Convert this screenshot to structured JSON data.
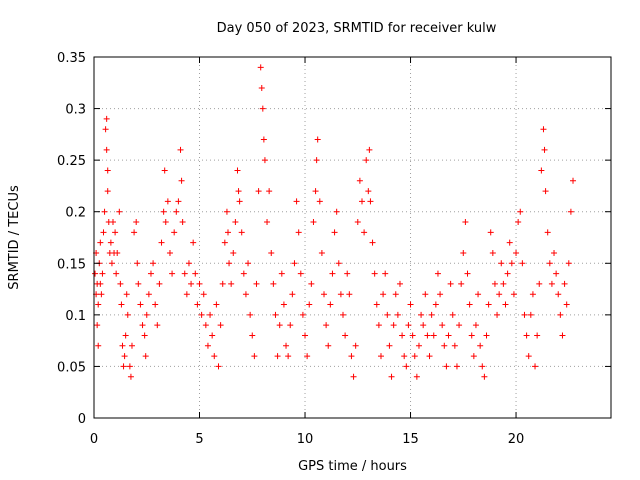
{
  "chart_data": {
    "type": "scatter",
    "title": "Day 050 of 2023, SRMTID for receiver kulw",
    "xlabel": "GPS time / hours",
    "ylabel": "SRMTID / TECUs",
    "xlim": [
      0,
      24.5
    ],
    "ylim": [
      0,
      0.35
    ],
    "xticks": [
      0,
      5,
      10,
      15,
      20
    ],
    "xtick_labels": [
      "0",
      "5",
      "10",
      "15",
      "20"
    ],
    "yticks": [
      0,
      0.05,
      0.1,
      0.15,
      0.2,
      0.25,
      0.3,
      0.35
    ],
    "ytick_labels": [
      "0",
      "0.05",
      "0.1",
      "0.15",
      "0.2",
      "0.25",
      "0.3",
      "0.35"
    ],
    "grid": true,
    "marker": "+",
    "color": "#ff0000",
    "series": [
      {
        "name": "SRMTID",
        "points": [
          [
            0.05,
            0.14
          ],
          [
            0.1,
            0.12
          ],
          [
            0.1,
            0.16
          ],
          [
            0.15,
            0.09
          ],
          [
            0.15,
            0.13
          ],
          [
            0.2,
            0.07
          ],
          [
            0.2,
            0.11
          ],
          [
            0.25,
            0.15
          ],
          [
            0.3,
            0.13
          ],
          [
            0.3,
            0.17
          ],
          [
            0.35,
            0.12
          ],
          [
            0.4,
            0.14
          ],
          [
            0.45,
            0.18
          ],
          [
            0.5,
            0.2
          ],
          [
            0.55,
            0.28
          ],
          [
            0.6,
            0.29
          ],
          [
            0.6,
            0.26
          ],
          [
            0.65,
            0.24
          ],
          [
            0.65,
            0.22
          ],
          [
            0.7,
            0.19
          ],
          [
            0.75,
            0.16
          ],
          [
            0.8,
            0.17
          ],
          [
            0.85,
            0.15
          ],
          [
            0.9,
            0.19
          ],
          [
            0.95,
            0.16
          ],
          [
            1.0,
            0.18
          ],
          [
            1.05,
            0.14
          ],
          [
            1.1,
            0.16
          ],
          [
            1.2,
            0.2
          ],
          [
            1.25,
            0.13
          ],
          [
            1.3,
            0.11
          ],
          [
            1.35,
            0.07
          ],
          [
            1.4,
            0.05
          ],
          [
            1.45,
            0.06
          ],
          [
            1.5,
            0.08
          ],
          [
            1.55,
            0.12
          ],
          [
            1.6,
            0.1
          ],
          [
            1.7,
            0.05
          ],
          [
            1.75,
            0.04
          ],
          [
            1.8,
            0.07
          ],
          [
            1.9,
            0.18
          ],
          [
            2.0,
            0.19
          ],
          [
            2.05,
            0.15
          ],
          [
            2.1,
            0.13
          ],
          [
            2.2,
            0.11
          ],
          [
            2.3,
            0.09
          ],
          [
            2.4,
            0.08
          ],
          [
            2.45,
            0.06
          ],
          [
            2.5,
            0.1
          ],
          [
            2.6,
            0.12
          ],
          [
            2.7,
            0.14
          ],
          [
            2.8,
            0.15
          ],
          [
            2.9,
            0.11
          ],
          [
            3.0,
            0.09
          ],
          [
            3.1,
            0.13
          ],
          [
            3.2,
            0.17
          ],
          [
            3.3,
            0.2
          ],
          [
            3.35,
            0.24
          ],
          [
            3.4,
            0.19
          ],
          [
            3.5,
            0.21
          ],
          [
            3.6,
            0.16
          ],
          [
            3.7,
            0.14
          ],
          [
            3.8,
            0.18
          ],
          [
            3.9,
            0.2
          ],
          [
            4.0,
            0.21
          ],
          [
            4.1,
            0.26
          ],
          [
            4.15,
            0.23
          ],
          [
            4.2,
            0.19
          ],
          [
            4.3,
            0.14
          ],
          [
            4.4,
            0.12
          ],
          [
            4.5,
            0.15
          ],
          [
            4.6,
            0.13
          ],
          [
            4.7,
            0.17
          ],
          [
            4.8,
            0.14
          ],
          [
            4.9,
            0.11
          ],
          [
            5.0,
            0.13
          ],
          [
            5.1,
            0.1
          ],
          [
            5.2,
            0.12
          ],
          [
            5.3,
            0.09
          ],
          [
            5.4,
            0.07
          ],
          [
            5.5,
            0.1
          ],
          [
            5.6,
            0.08
          ],
          [
            5.7,
            0.06
          ],
          [
            5.8,
            0.11
          ],
          [
            5.9,
            0.05
          ],
          [
            6.0,
            0.09
          ],
          [
            6.1,
            0.13
          ],
          [
            6.2,
            0.17
          ],
          [
            6.3,
            0.2
          ],
          [
            6.35,
            0.18
          ],
          [
            6.4,
            0.15
          ],
          [
            6.5,
            0.13
          ],
          [
            6.6,
            0.16
          ],
          [
            6.7,
            0.19
          ],
          [
            6.8,
            0.24
          ],
          [
            6.85,
            0.22
          ],
          [
            6.9,
            0.21
          ],
          [
            7.0,
            0.18
          ],
          [
            7.1,
            0.14
          ],
          [
            7.2,
            0.12
          ],
          [
            7.3,
            0.15
          ],
          [
            7.4,
            0.1
          ],
          [
            7.5,
            0.08
          ],
          [
            7.6,
            0.06
          ],
          [
            7.7,
            0.13
          ],
          [
            7.8,
            0.22
          ],
          [
            7.9,
            0.34
          ],
          [
            7.95,
            0.32
          ],
          [
            8.0,
            0.3
          ],
          [
            8.05,
            0.27
          ],
          [
            8.1,
            0.25
          ],
          [
            8.2,
            0.19
          ],
          [
            8.3,
            0.22
          ],
          [
            8.4,
            0.16
          ],
          [
            8.5,
            0.13
          ],
          [
            8.6,
            0.1
          ],
          [
            8.7,
            0.06
          ],
          [
            8.8,
            0.09
          ],
          [
            8.9,
            0.14
          ],
          [
            9.0,
            0.11
          ],
          [
            9.1,
            0.07
          ],
          [
            9.2,
            0.06
          ],
          [
            9.3,
            0.09
          ],
          [
            9.4,
            0.12
          ],
          [
            9.5,
            0.15
          ],
          [
            9.6,
            0.21
          ],
          [
            9.7,
            0.18
          ],
          [
            9.8,
            0.14
          ],
          [
            9.9,
            0.1
          ],
          [
            10.0,
            0.08
          ],
          [
            10.1,
            0.06
          ],
          [
            10.2,
            0.11
          ],
          [
            10.3,
            0.13
          ],
          [
            10.4,
            0.19
          ],
          [
            10.5,
            0.22
          ],
          [
            10.55,
            0.25
          ],
          [
            10.6,
            0.27
          ],
          [
            10.7,
            0.21
          ],
          [
            10.8,
            0.16
          ],
          [
            10.9,
            0.12
          ],
          [
            11.0,
            0.09
          ],
          [
            11.1,
            0.07
          ],
          [
            11.2,
            0.11
          ],
          [
            11.3,
            0.14
          ],
          [
            11.4,
            0.18
          ],
          [
            11.5,
            0.2
          ],
          [
            11.6,
            0.15
          ],
          [
            11.7,
            0.12
          ],
          [
            11.8,
            0.1
          ],
          [
            11.9,
            0.08
          ],
          [
            12.0,
            0.14
          ],
          [
            12.1,
            0.12
          ],
          [
            12.2,
            0.06
          ],
          [
            12.3,
            0.04
          ],
          [
            12.4,
            0.07
          ],
          [
            12.5,
            0.19
          ],
          [
            12.6,
            0.23
          ],
          [
            12.7,
            0.21
          ],
          [
            12.8,
            0.18
          ],
          [
            12.9,
            0.25
          ],
          [
            13.0,
            0.22
          ],
          [
            13.05,
            0.26
          ],
          [
            13.1,
            0.21
          ],
          [
            13.2,
            0.17
          ],
          [
            13.3,
            0.14
          ],
          [
            13.4,
            0.11
          ],
          [
            13.5,
            0.09
          ],
          [
            13.6,
            0.06
          ],
          [
            13.7,
            0.12
          ],
          [
            13.8,
            0.14
          ],
          [
            13.9,
            0.1
          ],
          [
            14.0,
            0.07
          ],
          [
            14.1,
            0.04
          ],
          [
            14.2,
            0.09
          ],
          [
            14.3,
            0.12
          ],
          [
            14.4,
            0.1
          ],
          [
            14.5,
            0.13
          ],
          [
            14.6,
            0.08
          ],
          [
            14.7,
            0.06
          ],
          [
            14.8,
            0.05
          ],
          [
            14.9,
            0.09
          ],
          [
            15.0,
            0.11
          ],
          [
            15.1,
            0.08
          ],
          [
            15.2,
            0.06
          ],
          [
            15.3,
            0.04
          ],
          [
            15.4,
            0.07
          ],
          [
            15.5,
            0.1
          ],
          [
            15.6,
            0.09
          ],
          [
            15.7,
            0.12
          ],
          [
            15.8,
            0.08
          ],
          [
            15.9,
            0.06
          ],
          [
            16.0,
            0.1
          ],
          [
            16.1,
            0.08
          ],
          [
            16.2,
            0.11
          ],
          [
            16.3,
            0.14
          ],
          [
            16.4,
            0.12
          ],
          [
            16.5,
            0.09
          ],
          [
            16.6,
            0.07
          ],
          [
            16.7,
            0.05
          ],
          [
            16.8,
            0.08
          ],
          [
            16.9,
            0.13
          ],
          [
            17.0,
            0.1
          ],
          [
            17.1,
            0.07
          ],
          [
            17.2,
            0.05
          ],
          [
            17.3,
            0.09
          ],
          [
            17.4,
            0.13
          ],
          [
            17.5,
            0.16
          ],
          [
            17.6,
            0.19
          ],
          [
            17.7,
            0.14
          ],
          [
            17.8,
            0.11
          ],
          [
            17.9,
            0.08
          ],
          [
            18.0,
            0.06
          ],
          [
            18.1,
            0.09
          ],
          [
            18.2,
            0.12
          ],
          [
            18.3,
            0.07
          ],
          [
            18.4,
            0.05
          ],
          [
            18.5,
            0.04
          ],
          [
            18.6,
            0.08
          ],
          [
            18.7,
            0.11
          ],
          [
            18.8,
            0.18
          ],
          [
            18.9,
            0.16
          ],
          [
            19.0,
            0.13
          ],
          [
            19.1,
            0.1
          ],
          [
            19.2,
            0.12
          ],
          [
            19.3,
            0.15
          ],
          [
            19.4,
            0.13
          ],
          [
            19.5,
            0.11
          ],
          [
            19.6,
            0.14
          ],
          [
            19.7,
            0.17
          ],
          [
            19.8,
            0.15
          ],
          [
            19.9,
            0.12
          ],
          [
            20.0,
            0.16
          ],
          [
            20.1,
            0.19
          ],
          [
            20.2,
            0.2
          ],
          [
            20.3,
            0.15
          ],
          [
            20.4,
            0.1
          ],
          [
            20.5,
            0.08
          ],
          [
            20.6,
            0.06
          ],
          [
            20.7,
            0.1
          ],
          [
            20.8,
            0.12
          ],
          [
            20.9,
            0.05
          ],
          [
            21.0,
            0.08
          ],
          [
            21.1,
            0.13
          ],
          [
            21.2,
            0.24
          ],
          [
            21.3,
            0.28
          ],
          [
            21.35,
            0.26
          ],
          [
            21.4,
            0.22
          ],
          [
            21.5,
            0.18
          ],
          [
            21.6,
            0.15
          ],
          [
            21.7,
            0.13
          ],
          [
            21.8,
            0.16
          ],
          [
            21.9,
            0.14
          ],
          [
            22.0,
            0.12
          ],
          [
            22.1,
            0.1
          ],
          [
            22.2,
            0.08
          ],
          [
            22.3,
            0.13
          ],
          [
            22.4,
            0.11
          ],
          [
            22.5,
            0.15
          ],
          [
            22.6,
            0.2
          ],
          [
            22.7,
            0.23
          ]
        ]
      }
    ]
  }
}
